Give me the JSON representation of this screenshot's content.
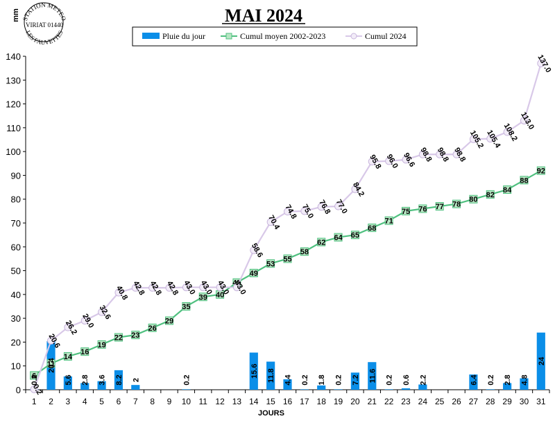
{
  "chart_data": {
    "type": "bar",
    "title": "MAI 2024",
    "xlabel": "JOURS",
    "ylabel": "mm",
    "ylim": [
      0,
      140
    ],
    "yticks": [
      0,
      10,
      20,
      30,
      40,
      50,
      60,
      70,
      80,
      90,
      100,
      110,
      120,
      130,
      140
    ],
    "categories": [
      1,
      2,
      3,
      4,
      5,
      6,
      7,
      8,
      9,
      10,
      11,
      12,
      13,
      14,
      15,
      16,
      17,
      18,
      19,
      20,
      21,
      22,
      23,
      24,
      25,
      26,
      27,
      28,
      29,
      30,
      31
    ],
    "grid": false,
    "legend_position": "top-center",
    "series": [
      {
        "name": "Pluie du jour",
        "kind": "bar",
        "color": "#0b8ee8",
        "values": [
          0.2,
          20.4,
          5.6,
          2.8,
          3.6,
          8.2,
          2,
          0,
          0,
          0.2,
          0,
          0,
          0,
          15.6,
          11.8,
          4.4,
          0.2,
          1.8,
          0.2,
          7.2,
          11.6,
          0.2,
          0.6,
          2.2,
          0,
          0,
          6.4,
          0.2,
          2.8,
          4.8,
          24
        ],
        "labels": [
          "0.2",
          "20.4",
          "5.6",
          "2.8",
          "3.6",
          "8.2",
          "2",
          "",
          "",
          "0.2",
          "",
          "",
          "",
          "15.6",
          "11.8",
          "4.4",
          "0.2",
          "1.8",
          "0.2",
          "7.2",
          "11.6",
          "0.2",
          "0.6",
          "2.2",
          "",
          "",
          "6.4",
          "0.2",
          "2.8",
          "4.8",
          "24"
        ]
      },
      {
        "name": "Cumul moyen 2002-2023",
        "kind": "line",
        "color": "#4fc07f",
        "values": [
          6,
          11,
          14,
          16,
          19,
          22,
          23,
          26,
          29,
          35,
          39,
          40,
          45,
          49,
          53,
          55,
          58,
          62,
          64,
          65,
          68,
          71,
          75,
          76,
          77,
          78,
          80,
          82,
          84,
          88,
          92
        ],
        "labels": [
          "6",
          "11",
          "14",
          "16",
          "19",
          "22",
          "23",
          "26",
          "29",
          "35",
          "39",
          "40",
          "45",
          "49",
          "53",
          "55",
          "58",
          "62",
          "64",
          "65",
          "68",
          "71",
          "75",
          "76",
          "77",
          "78",
          "80",
          "82",
          "84",
          "88",
          "92"
        ]
      },
      {
        "name": "Cumul 2024",
        "kind": "line",
        "color": "#d8c8e8",
        "values": [
          0.2,
          20.6,
          26.2,
          29.0,
          32.6,
          40.8,
          42.8,
          42.8,
          42.8,
          43.0,
          43.0,
          43.0,
          43.0,
          58.6,
          70.4,
          74.8,
          75.0,
          76.8,
          77.0,
          84.2,
          95.8,
          96.0,
          96.6,
          98.8,
          98.8,
          98.8,
          105.2,
          105.4,
          108.2,
          113.0,
          137.0
        ],
        "labels": [
          "0.2",
          "20.6",
          "26.2",
          "29.0",
          "32.6",
          "40.8",
          "42.8",
          "42.8",
          "42.8",
          "43.0",
          "43.0",
          "43.0",
          "43.0",
          "58.6",
          "70.4",
          "74.8",
          "75.0",
          "76.8",
          "77.0",
          "84.2",
          "95.8",
          "96.0",
          "96.6",
          "98.8",
          "98.8",
          "98.8",
          "105.2",
          "105.4",
          "108.2",
          "113.0",
          "137.0"
        ]
      }
    ]
  },
  "logo": {
    "top_text": "STATION METEO",
    "middle_text": "VIRIAT 01440",
    "bottom_text": "LES FAUVETTES"
  }
}
